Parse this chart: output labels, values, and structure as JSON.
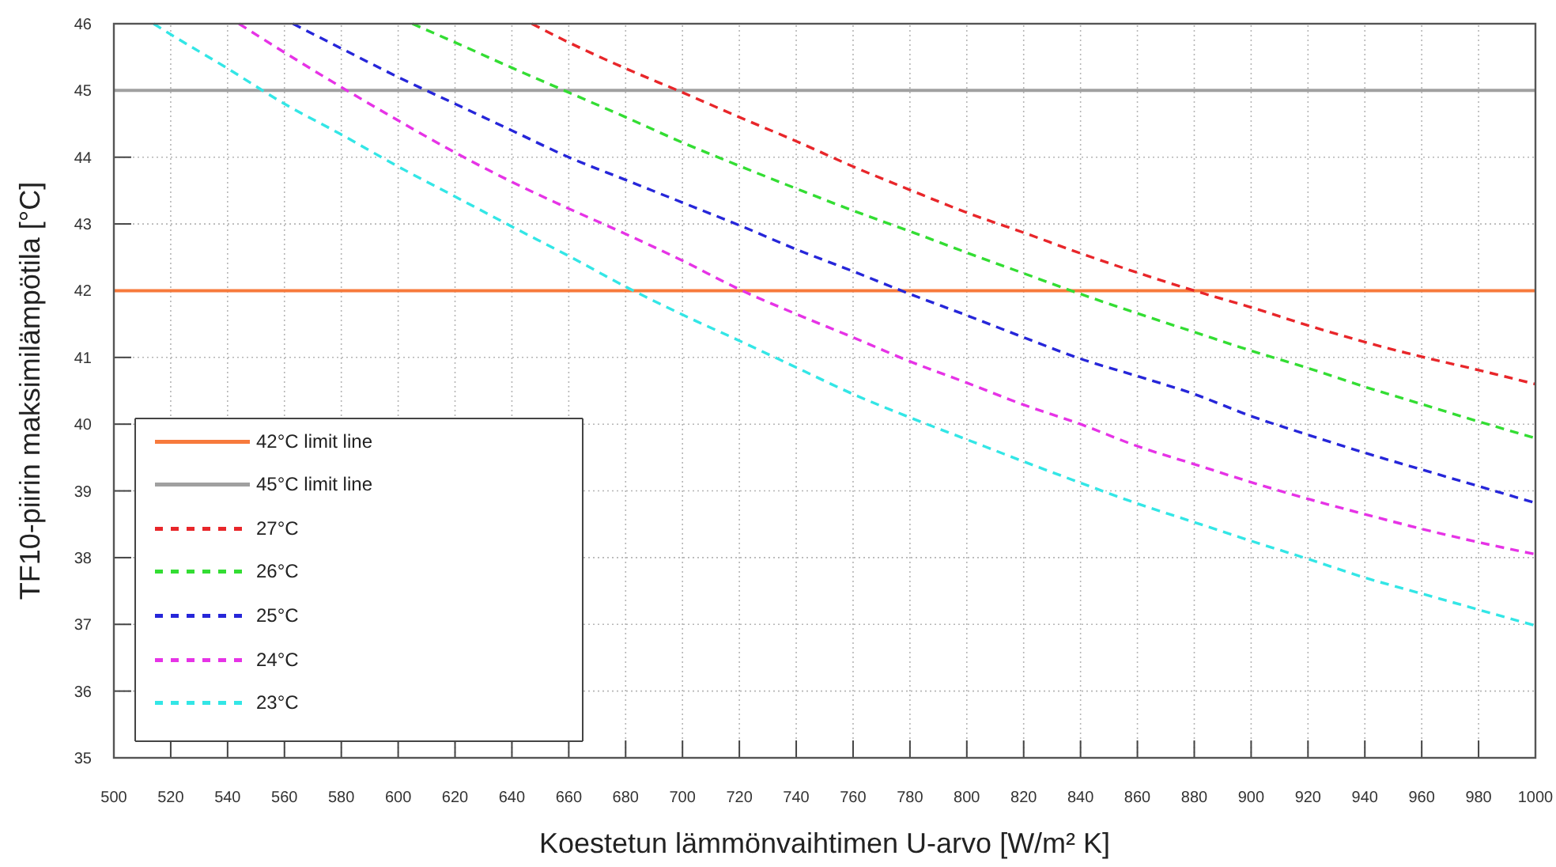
{
  "chart_data": {
    "type": "line",
    "xlabel": "Koestetun lämmönvaihtimen U-arvo [W/m² K]",
    "ylabel": "TF10-piirin maksimilämpötila [°C]",
    "xlim": [
      500,
      1000
    ],
    "xticks": [
      500,
      520,
      540,
      560,
      580,
      600,
      620,
      640,
      660,
      680,
      700,
      720,
      740,
      760,
      780,
      800,
      820,
      840,
      860,
      880,
      900,
      920,
      940,
      960,
      980,
      1000
    ],
    "ylim": [
      35,
      46
    ],
    "yticks": [
      35,
      36,
      37,
      38,
      39,
      40,
      41,
      42,
      43,
      44,
      45,
      46
    ],
    "grid": true,
    "legend": "bottom left",
    "line_style": "dashed",
    "ref_lines": [
      {
        "axis": "y",
        "value": 42,
        "label": "42°C limit line",
        "color": "#f77a3c",
        "line_style": "solid"
      },
      {
        "axis": "y",
        "value": 45,
        "label": "45°C limit line",
        "color": "#a0a0a0",
        "line_style": "solid"
      }
    ],
    "series": [
      {
        "name": "27°C",
        "color": "#e8262a",
        "x": [
          647,
          660,
          680,
          700,
          720,
          740,
          760,
          780,
          800,
          820,
          840,
          860,
          880,
          900,
          920,
          940,
          960,
          980,
          1000
        ],
        "values": [
          46,
          45.72,
          45.33,
          44.97,
          44.6,
          44.24,
          43.86,
          43.51,
          43.17,
          42.87,
          42.56,
          42.27,
          42.0,
          41.75,
          41.48,
          41.23,
          41.01,
          40.81,
          40.6
        ]
      },
      {
        "name": "26°C",
        "color": "#33dd33",
        "x": [
          605,
          620,
          640,
          660,
          680,
          700,
          720,
          740,
          760,
          780,
          800,
          820,
          840,
          860,
          880,
          900,
          920,
          940,
          960,
          980,
          1000
        ],
        "values": [
          46,
          45.72,
          45.34,
          44.97,
          44.6,
          44.22,
          43.87,
          43.53,
          43.2,
          42.89,
          42.57,
          42.26,
          41.95,
          41.66,
          41.38,
          41.1,
          40.84,
          40.56,
          40.3,
          40.04,
          39.79
        ]
      },
      {
        "name": "25°C",
        "color": "#2626d9",
        "x": [
          563,
          580,
          600,
          620,
          640,
          660,
          680,
          700,
          720,
          740,
          760,
          780,
          800,
          820,
          840,
          860,
          880,
          900,
          920,
          940,
          960,
          980,
          1000
        ],
        "values": [
          46,
          45.63,
          45.2,
          44.8,
          44.4,
          44.0,
          43.66,
          43.32,
          42.98,
          42.62,
          42.29,
          41.95,
          41.63,
          41.3,
          40.98,
          40.72,
          40.45,
          40.12,
          39.84,
          39.57,
          39.32,
          39.07,
          38.82
        ]
      },
      {
        "name": "24°C",
        "color": "#e633e6",
        "x": [
          544,
          560,
          580,
          600,
          620,
          640,
          660,
          680,
          700,
          720,
          740,
          760,
          780,
          800,
          820,
          840,
          860,
          880,
          900,
          920,
          940,
          960,
          980,
          1000
        ],
        "values": [
          46,
          45.57,
          45.05,
          44.55,
          44.07,
          43.63,
          43.23,
          42.85,
          42.45,
          42.02,
          41.65,
          41.3,
          40.94,
          40.62,
          40.29,
          40.0,
          39.67,
          39.4,
          39.13,
          38.88,
          38.65,
          38.43,
          38.23,
          38.05
        ]
      },
      {
        "name": "23°C",
        "color": "#33e6e6",
        "x": [
          514,
          520,
          540,
          560,
          580,
          600,
          620,
          640,
          660,
          680,
          700,
          720,
          740,
          760,
          780,
          800,
          820,
          840,
          860,
          880,
          900,
          920,
          940,
          960,
          980,
          1000
        ],
        "values": [
          46,
          45.84,
          45.33,
          44.8,
          44.34,
          43.86,
          43.41,
          42.96,
          42.52,
          42.06,
          41.64,
          41.25,
          40.85,
          40.45,
          40.1,
          39.77,
          39.44,
          39.12,
          38.81,
          38.53,
          38.25,
          37.98,
          37.7,
          37.46,
          37.22,
          36.98
        ]
      }
    ]
  }
}
